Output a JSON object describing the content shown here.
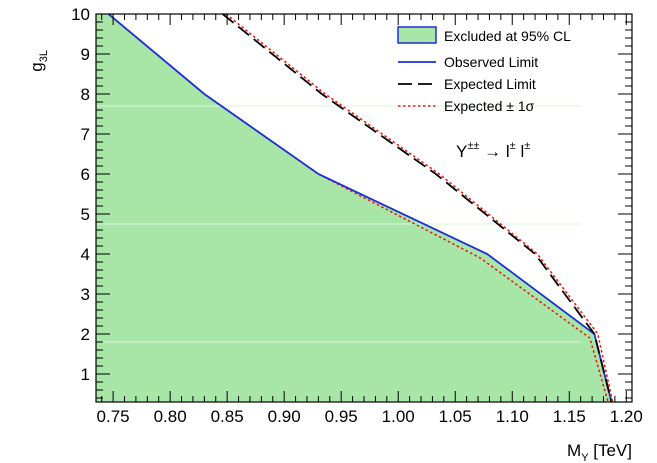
{
  "chart_data": {
    "type": "line",
    "xlabel": "M",
    "xlabel_sub": "Y",
    "xlabel_unit": " [TeV]",
    "ylabel": "g",
    "ylabel_sub": "3L",
    "xlim": [
      0.735,
      1.205
    ],
    "ylim": [
      0.3,
      10
    ],
    "x_ticks": [
      "0.75",
      "0.80",
      "0.85",
      "0.90",
      "0.95",
      "1.00",
      "1.05",
      "1.10",
      "1.15",
      "1.20"
    ],
    "y_ticks": [
      "1",
      "2",
      "3",
      "4",
      "5",
      "6",
      "7",
      "8",
      "9",
      "10"
    ],
    "annotation": {
      "base": "Y",
      "base_sup": "±±",
      "arrow": " → ",
      "lep1": "l",
      "lep1_sup": "±",
      "lep2": "l",
      "lep2_sup": "±"
    },
    "legend": {
      "position": "top-right",
      "entries": [
        {
          "label": "Excluded at 95% CL",
          "style": "fill"
        },
        {
          "label": "Observed Limit",
          "style": "solid"
        },
        {
          "label": "Expected Limit",
          "style": "dashed"
        },
        {
          "label": "Expected ± 1σ",
          "style": "dotted"
        }
      ]
    },
    "colors": {
      "fill": "#a8e6a8",
      "fill_edge": "#1f2fd6",
      "observed": "#1f2fd6",
      "expected": "#000000",
      "expected_band": "#e02020"
    },
    "series": [
      {
        "name": "Observed Limit",
        "x": [
          0.746,
          0.83,
          0.93,
          1.078,
          1.172,
          1.187
        ],
        "y": [
          10.0,
          8.0,
          6.0,
          4.0,
          2.0,
          0.3
        ]
      },
      {
        "name": "Expected Limit",
        "x": [
          0.846,
          0.933,
          1.033,
          1.12,
          1.172,
          1.187
        ],
        "y": [
          10.0,
          8.0,
          6.0,
          4.0,
          2.0,
          0.3
        ]
      },
      {
        "name": "Expected ± 1σ (upper)",
        "x": [
          0.849,
          0.936,
          1.036,
          1.122,
          1.175,
          1.188
        ],
        "y": [
          10.0,
          8.0,
          6.0,
          4.0,
          2.0,
          0.3
        ]
      },
      {
        "name": "Expected ± 1σ (lower)",
        "x": [
          0.746,
          0.83,
          0.93,
          1.072,
          1.168,
          1.184
        ],
        "y": [
          10.0,
          8.0,
          6.0,
          3.9,
          1.9,
          0.3
        ]
      }
    ]
  }
}
